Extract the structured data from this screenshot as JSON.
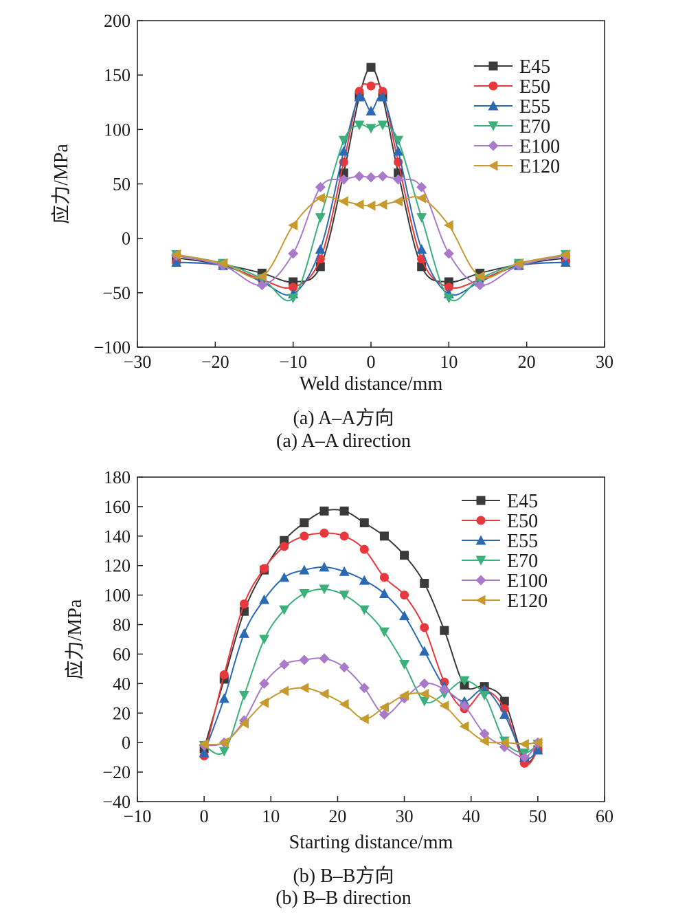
{
  "captions": {
    "a_cn": "(a) A–A方向",
    "a_en": "(a) A–A direction",
    "b_cn": "(b) B–B方向",
    "b_en": "(b) B–B direction"
  },
  "chart_data": [
    {
      "type": "line",
      "xlabel": "Weld distance/mm",
      "ylabel": "应力/MPa",
      "xlim": [
        -30,
        30
      ],
      "ylim": [
        -100,
        200
      ],
      "xticks": [
        -30,
        -20,
        -10,
        0,
        10,
        20,
        30
      ],
      "yticks": [
        -100,
        -50,
        0,
        50,
        100,
        150,
        200
      ],
      "legend_position": "top-right",
      "x": [
        -25,
        -19,
        -14,
        -10,
        -6.5,
        -3.5,
        -1.5,
        0,
        1.5,
        3.5,
        6.5,
        10,
        14,
        19,
        25
      ],
      "series": [
        {
          "name": "E45",
          "color": "#3a3a3a",
          "marker": "square",
          "values": [
            -18,
            -24,
            -32,
            -40,
            -26,
            60,
            130,
            157,
            130,
            60,
            -26,
            -40,
            -32,
            -24,
            -18
          ]
        },
        {
          "name": "E50",
          "color": "#e8383d",
          "marker": "circle",
          "values": [
            -22,
            -25,
            -38,
            -45,
            -19,
            70,
            135,
            140,
            135,
            70,
            -19,
            -45,
            -38,
            -25,
            -22
          ]
        },
        {
          "name": "E55",
          "color": "#2a6ab5",
          "marker": "triangle-up",
          "values": [
            -22,
            -25,
            -40,
            -51,
            -10,
            80,
            130,
            117,
            130,
            80,
            -10,
            -51,
            -40,
            -25,
            -22
          ]
        },
        {
          "name": "E70",
          "color": "#3bb07a",
          "marker": "triangle-down",
          "values": [
            -15,
            -23,
            -37,
            -55,
            19,
            90,
            104,
            101,
            104,
            90,
            19,
            -55,
            -37,
            -23,
            -15
          ]
        },
        {
          "name": "E100",
          "color": "#a97ac9",
          "marker": "diamond",
          "values": [
            -16,
            -25,
            -43,
            -14,
            47,
            54,
            57,
            56,
            57,
            54,
            47,
            -14,
            -43,
            -25,
            -16
          ]
        },
        {
          "name": "E120",
          "color": "#c79a2e",
          "marker": "triangle-left",
          "values": [
            -15,
            -23,
            -35,
            12,
            37,
            34,
            31,
            30,
            31,
            34,
            37,
            12,
            -35,
            -23,
            -15
          ]
        }
      ]
    },
    {
      "type": "line",
      "xlabel": "Starting distance/mm",
      "ylabel": "应力/MPa",
      "xlim": [
        -10,
        60
      ],
      "ylim": [
        -40,
        180
      ],
      "xticks": [
        -10,
        0,
        10,
        20,
        30,
        40,
        50,
        60
      ],
      "yticks": [
        -40,
        -20,
        0,
        20,
        40,
        60,
        80,
        100,
        120,
        140,
        160,
        180
      ],
      "legend_position": "top-right",
      "x": [
        0,
        3,
        6,
        9,
        12,
        15,
        18,
        21,
        24,
        27,
        30,
        33,
        36,
        39,
        42,
        45,
        48,
        50
      ],
      "series": [
        {
          "name": "E45",
          "color": "#3a3a3a",
          "marker": "square",
          "values": [
            -4,
            43,
            89,
            117,
            137,
            149,
            157,
            157,
            149,
            140,
            127,
            108,
            76,
            39,
            38,
            28,
            -12,
            -5
          ]
        },
        {
          "name": "E50",
          "color": "#e8383d",
          "marker": "circle",
          "values": [
            -9,
            46,
            94,
            118,
            133,
            140,
            142,
            140,
            131,
            112,
            100,
            78,
            41,
            23,
            35,
            23,
            -14,
            -5
          ]
        },
        {
          "name": "E55",
          "color": "#2a6ab5",
          "marker": "triangle-up",
          "values": [
            -7,
            30,
            74,
            97,
            112,
            117,
            119,
            116,
            110,
            101,
            86,
            62,
            38,
            28,
            36,
            19,
            -10,
            -5
          ]
        },
        {
          "name": "E70",
          "color": "#3bb07a",
          "marker": "triangle-down",
          "values": [
            -2,
            -6,
            32,
            70,
            90,
            101,
            104,
            100,
            90,
            75,
            53,
            28,
            33,
            42,
            32,
            1,
            -7,
            -1
          ]
        },
        {
          "name": "E100",
          "color": "#a97ac9",
          "marker": "diamond",
          "values": [
            -2,
            0,
            15,
            40,
            53,
            56,
            57,
            51,
            37,
            19,
            30,
            40,
            36,
            25,
            6,
            -3,
            -10,
            0
          ]
        },
        {
          "name": "E120",
          "color": "#c79a2e",
          "marker": "triangle-left",
          "values": [
            -1,
            0,
            13,
            27,
            35,
            37,
            33,
            26,
            16,
            24,
            32,
            33,
            25,
            11,
            1,
            0,
            -1,
            0
          ]
        }
      ]
    }
  ]
}
